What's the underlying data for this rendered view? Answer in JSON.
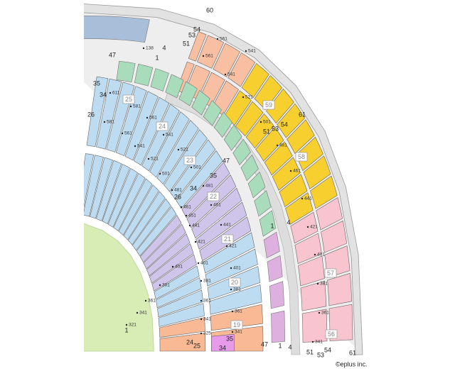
{
  "blocks": [
    "19",
    "20",
    "21",
    "22",
    "23",
    "24",
    "25",
    "56",
    "57",
    "58",
    "59"
  ],
  "row_labels": [
    "138",
    "611",
    "581",
    "581",
    "561",
    "561",
    "541",
    "541",
    "521",
    "521",
    "501",
    "501",
    "481",
    "481",
    "461",
    "461",
    "451",
    "441",
    "441",
    "421",
    "421",
    "401",
    "401",
    "401",
    "381",
    "381",
    "381",
    "361",
    "361",
    "361",
    "341",
    "341",
    "341",
    "321",
    "325",
    "561",
    "561",
    "541",
    "541",
    "521",
    "501",
    "481",
    "461",
    "441",
    "421",
    "401",
    "381",
    "361",
    "341"
  ],
  "seat_numbers": [
    "60",
    "54",
    "53",
    "51",
    "4",
    "1",
    "47",
    "35",
    "34",
    "26",
    "61",
    "54",
    "53",
    "51",
    "47",
    "35",
    "34",
    "26",
    "1",
    "4",
    "24",
    "25",
    "34",
    "35",
    "47",
    "1",
    "1",
    "4",
    "51",
    "53",
    "54",
    "61"
  ],
  "copyright": "©eplus inc."
}
